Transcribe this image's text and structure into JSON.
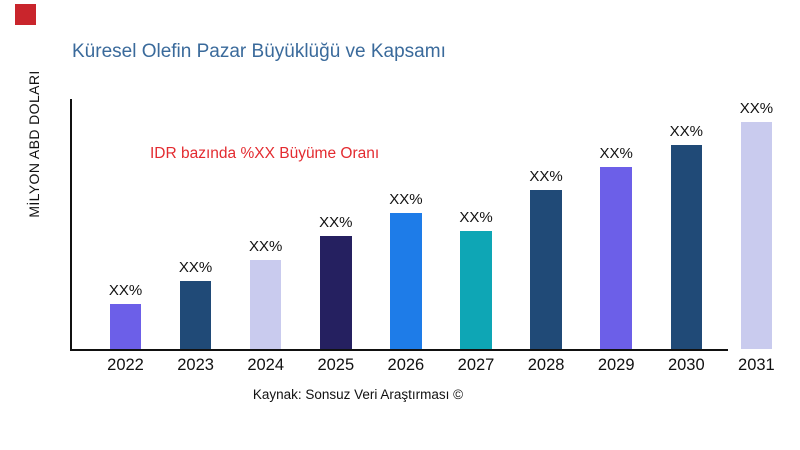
{
  "page": {
    "background": "#ffffff"
  },
  "brand": {
    "logo_color": "#c9252c"
  },
  "chart": {
    "title": "Küresel Olefin Pazar Büyüklüğü ve Kapsamı",
    "title_color": "#3a6a9b",
    "ylabel": "MİLYON ABD DOLARI",
    "annotation": "IDR bazında %XX Büyüme Oranı",
    "annotation_color": "#e32b30",
    "source": "Kaynak: Sonsuz Veri Araştırması ©",
    "axis_color": "#111111"
  },
  "chart_data": {
    "type": "bar",
    "title": "Küresel Olefin Pazar Büyüklüğü ve Kapsamı",
    "xlabel": "",
    "ylabel": "MİLYON ABD DOLARI",
    "categories": [
      "2022",
      "2023",
      "2024",
      "2025",
      "2026",
      "2027",
      "2028",
      "2029",
      "2030",
      "2031"
    ],
    "values": [
      20,
      30,
      39,
      50,
      60,
      52,
      70,
      80,
      90,
      100
    ],
    "values_note": "Actual values masked on chart as XX%; numbers are estimated bar heights as percent of tallest bar (2031)",
    "value_labels": [
      "XX%",
      "XX%",
      "XX%",
      "XX%",
      "XX%",
      "XX%",
      "XX%",
      "XX%",
      "XX%",
      "XX%"
    ],
    "bar_colors": [
      "#6c5fe8",
      "#204a77",
      "#c9cbee",
      "#252060",
      "#1e7ce8",
      "#0ea6b5",
      "#204a77",
      "#6c5fe8",
      "#204a77",
      "#c9cbee"
    ],
    "ylim": [
      0,
      100
    ],
    "grid": false,
    "legend": false,
    "annotation": "IDR bazında %XX Büyüme Oranı",
    "source": "Kaynak: Sonsuz Veri Araştırması ©"
  }
}
